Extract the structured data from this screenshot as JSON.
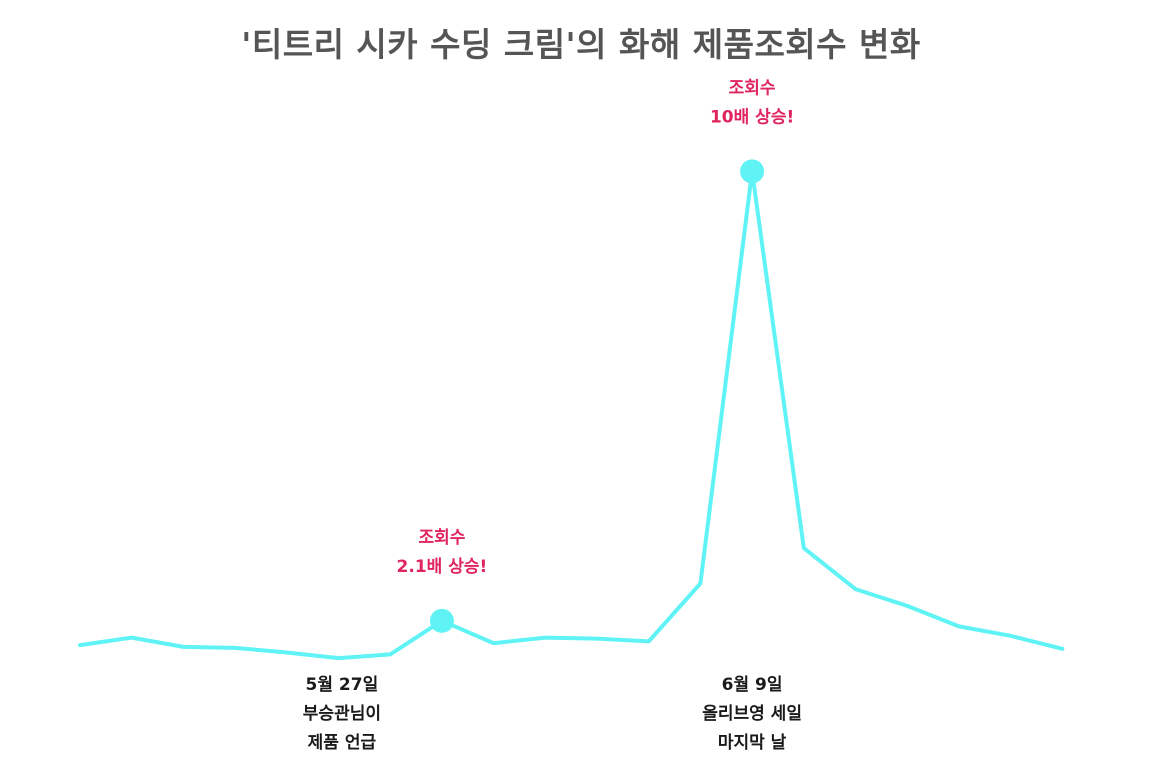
{
  "chart_data": {
    "type": "line",
    "title": "'티트리 시카 수딩 크림'의 화해 제품조회수 변화",
    "xlabel": "",
    "ylabel": "",
    "grid": false,
    "legend": "none",
    "color": "#5ff3f5",
    "annotation_color": "#e0245e",
    "values": [
      8,
      12,
      7,
      6.5,
      4,
      1,
      3,
      21,
      9,
      12,
      11.5,
      10,
      41,
      262,
      60,
      38,
      29,
      18,
      13,
      6
    ],
    "highlights": [
      {
        "index": 7,
        "annotation": [
          "조회수",
          "2.1배 상승!"
        ],
        "event": [
          "5월 27일",
          "부승관님이",
          " 제품 언급"
        ]
      },
      {
        "index": 13,
        "annotation": [
          "조회수",
          "10배 상승!"
        ],
        "event": [
          "6월 9일",
          "올리브영 세일",
          "마지막 날"
        ]
      }
    ]
  }
}
